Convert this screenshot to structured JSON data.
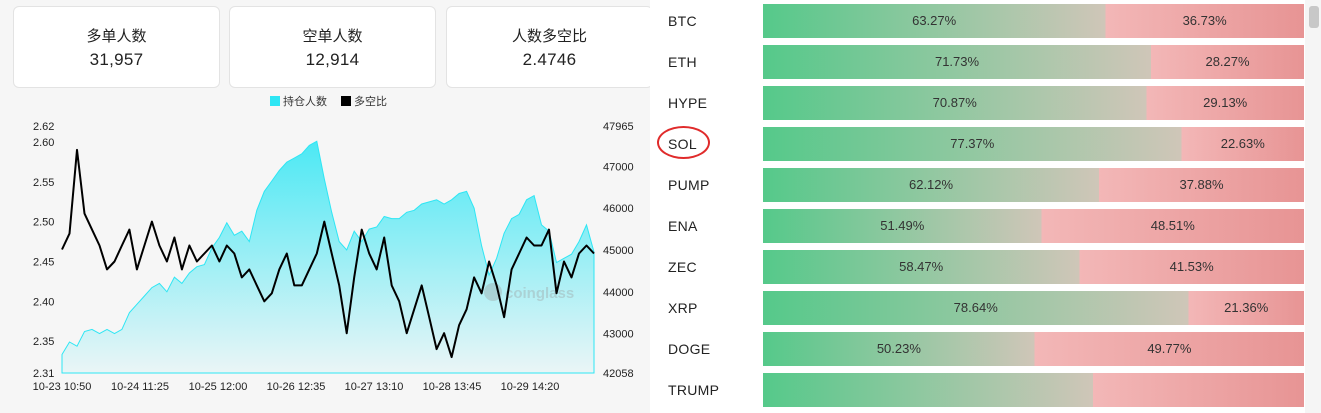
{
  "stats": [
    {
      "label": "多单人数",
      "value": "31,957"
    },
    {
      "label": "空单人数",
      "value": "12,914"
    },
    {
      "label": "人数多空比",
      "value": "2.4746"
    }
  ],
  "legend": {
    "open_interest": "持仓人数",
    "ratio": "多空比",
    "open_interest_color": "#2ee6f4",
    "ratio_color": "#000000"
  },
  "watermark": "coinglass",
  "chart_data": {
    "type": "line",
    "title": "",
    "x_labels": [
      "10-23 10:50",
      "10-24 11:25",
      "10-25 12:00",
      "10-26 12:35",
      "10-27 13:10",
      "10-28 13:45",
      "10-29 14:20"
    ],
    "left_axis": {
      "label": "",
      "ticks": [
        "2.62",
        "2.60",
        "2.55",
        "2.50",
        "2.45",
        "2.40",
        "2.35",
        "2.31"
      ],
      "range": [
        2.31,
        2.62
      ]
    },
    "right_axis": {
      "label": "",
      "ticks": [
        "47965",
        "47000",
        "46000",
        "45000",
        "44000",
        "43000",
        "42058"
      ],
      "range": [
        42058,
        47965
      ]
    },
    "series": [
      {
        "name": "持仓人数",
        "type": "area",
        "axis": "right",
        "color": "#2ee6f4",
        "x": [
          0,
          0.1,
          0.2,
          0.3,
          0.4,
          0.5,
          0.6,
          0.7,
          0.8,
          0.9,
          1,
          1.1,
          1.2,
          1.3,
          1.4,
          1.5,
          1.6,
          1.7,
          1.8,
          1.9,
          2,
          2.1,
          2.2,
          2.3,
          2.4,
          2.5,
          2.6,
          2.7,
          2.8,
          2.9,
          3,
          3.1,
          3.2,
          3.3,
          3.4,
          3.5,
          3.6,
          3.7,
          3.8,
          3.9,
          4,
          4.1,
          4.2,
          4.3,
          4.4,
          4.5,
          4.6,
          4.7,
          4.8,
          4.9,
          5,
          5.1,
          5.2,
          5.3,
          5.4,
          5.5,
          5.6,
          5.7,
          5.8,
          5.9,
          6,
          6.1,
          6.2,
          6.3,
          6.4,
          6.5,
          6.6,
          6.7,
          6.8,
          6.9,
          7,
          7.1
        ],
        "values": [
          42500,
          42800,
          42700,
          43050,
          43100,
          43000,
          43100,
          43000,
          43100,
          43500,
          43700,
          43900,
          44100,
          44200,
          44000,
          44350,
          44200,
          44450,
          44600,
          44650,
          45050,
          45300,
          45650,
          45350,
          45450,
          45200,
          45950,
          46400,
          46650,
          46900,
          47100,
          47200,
          47300,
          47500,
          47600,
          46700,
          45900,
          45200,
          45000,
          45450,
          45200,
          45500,
          45550,
          45800,
          45750,
          45750,
          45900,
          45950,
          46100,
          46150,
          46200,
          46100,
          46200,
          46350,
          46400,
          46000,
          45100,
          44400,
          44800,
          45400,
          45750,
          45850,
          46200,
          46300,
          45600,
          45450,
          44700,
          44800,
          44900,
          45200,
          45600,
          44950
        ],
        "unit": "持仓人数"
      },
      {
        "name": "多空比",
        "type": "line",
        "axis": "left",
        "color": "#000000",
        "x": [
          0,
          0.1,
          0.2,
          0.3,
          0.4,
          0.5,
          0.6,
          0.7,
          0.8,
          0.9,
          1,
          1.1,
          1.2,
          1.3,
          1.4,
          1.5,
          1.6,
          1.7,
          1.8,
          1.9,
          2,
          2.1,
          2.2,
          2.3,
          2.4,
          2.5,
          2.6,
          2.7,
          2.8,
          2.9,
          3,
          3.1,
          3.2,
          3.3,
          3.4,
          3.5,
          3.6,
          3.7,
          3.8,
          3.9,
          4,
          4.1,
          4.2,
          4.3,
          4.4,
          4.5,
          4.6,
          4.7,
          4.8,
          4.9,
          5,
          5.1,
          5.2,
          5.3,
          5.4,
          5.5,
          5.6,
          5.7,
          5.8,
          5.9,
          6,
          6.1,
          6.2,
          6.3,
          6.4,
          6.5,
          6.6,
          6.7,
          6.8,
          6.9,
          7,
          7.1
        ],
        "values": [
          2.465,
          2.485,
          2.59,
          2.51,
          2.49,
          2.47,
          2.44,
          2.45,
          2.47,
          2.49,
          2.44,
          2.47,
          2.5,
          2.47,
          2.45,
          2.48,
          2.44,
          2.47,
          2.45,
          2.46,
          2.47,
          2.45,
          2.47,
          2.46,
          2.43,
          2.44,
          2.42,
          2.4,
          2.41,
          2.44,
          2.46,
          2.42,
          2.42,
          2.44,
          2.46,
          2.5,
          2.46,
          2.42,
          2.36,
          2.43,
          2.49,
          2.46,
          2.44,
          2.48,
          2.42,
          2.4,
          2.36,
          2.39,
          2.42,
          2.38,
          2.34,
          2.36,
          2.33,
          2.37,
          2.39,
          2.43,
          2.41,
          2.45,
          2.42,
          2.38,
          2.44,
          2.46,
          2.48,
          2.47,
          2.47,
          2.49,
          2.41,
          2.45,
          2.43,
          2.46,
          2.47,
          2.46
        ],
        "unit": "多空比"
      }
    ],
    "grid": false,
    "legend_position": "top-center"
  },
  "coins": [
    {
      "symbol": "BTC",
      "long": "63.27%",
      "short": "36.73%",
      "long_fraction": 0.6327,
      "highlighted": false
    },
    {
      "symbol": "ETH",
      "long": "71.73%",
      "short": "28.27%",
      "long_fraction": 0.7173,
      "highlighted": false
    },
    {
      "symbol": "HYPE",
      "long": "70.87%",
      "short": "29.13%",
      "long_fraction": 0.7087,
      "highlighted": false
    },
    {
      "symbol": "SOL",
      "long": "77.37%",
      "short": "22.63%",
      "long_fraction": 0.7737,
      "highlighted": true
    },
    {
      "symbol": "PUMP",
      "long": "62.12%",
      "short": "37.88%",
      "long_fraction": 0.6212,
      "highlighted": false
    },
    {
      "symbol": "ENA",
      "long": "51.49%",
      "short": "48.51%",
      "long_fraction": 0.5149,
      "highlighted": false
    },
    {
      "symbol": "ZEC",
      "long": "58.47%",
      "short": "41.53%",
      "long_fraction": 0.5847,
      "highlighted": false
    },
    {
      "symbol": "XRP",
      "long": "78.64%",
      "short": "21.36%",
      "long_fraction": 0.7864,
      "highlighted": false
    },
    {
      "symbol": "DOGE",
      "long": "50.23%",
      "short": "49.77%",
      "long_fraction": 0.5023,
      "highlighted": false
    },
    {
      "symbol": "TRUMP",
      "long": "",
      "short": "",
      "long_fraction": 0.61,
      "highlighted": false
    }
  ],
  "colors": {
    "long_start": "#55c98a",
    "long_end": "#cfc6b8",
    "short_start": "#f3b7b7",
    "short_end": "#e79494",
    "highlight_ring": "#e02b2b"
  }
}
